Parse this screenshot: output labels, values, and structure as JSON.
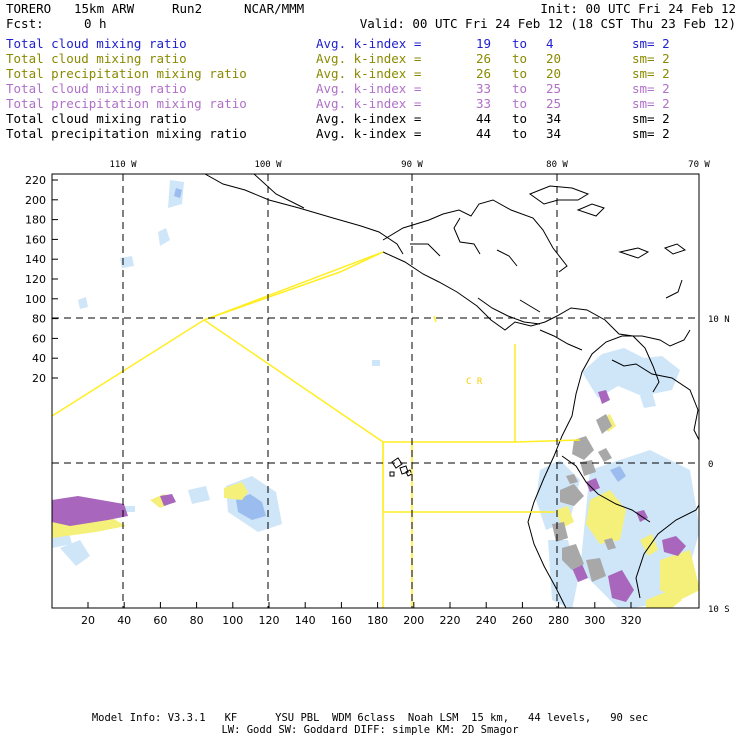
{
  "header": {
    "model": "TORERO",
    "resolution": "15km ARW",
    "run": "Run2",
    "org": "NCAR/MMM",
    "init": "Init: 00 UTC Fri 24 Feb 12",
    "fcst_label": "Fcst:",
    "fcst_value": "0 h",
    "valid": "Valid: 00 UTC Fri 24 Feb 12 (18 CST Thu 23 Feb 12)"
  },
  "legend_rows": [
    {
      "field": "Total cloud mixing ratio",
      "index": "Avg. k-index =",
      "from": "19",
      "to_word": "to",
      "to": "4",
      "sm": "sm= 2",
      "color": "#2020d0"
    },
    {
      "field": "Total cloud mixing ratio",
      "index": "Avg. k-index =",
      "from": "26",
      "to_word": "to",
      "to": "20",
      "sm": "sm= 2",
      "color": "#8a8a00"
    },
    {
      "field": "Total precipitation mixing ratio",
      "index": "Avg. k-index =",
      "from": "26",
      "to_word": "to",
      "to": "20",
      "sm": "sm= 2",
      "color": "#8a8a00"
    },
    {
      "field": "Total cloud mixing ratio",
      "index": "Avg. k-index =",
      "from": "33",
      "to_word": "to",
      "to": "25",
      "sm": "sm= 2",
      "color": "#b070c8"
    },
    {
      "field": "Total precipitation mixing ratio",
      "index": "Avg. k-index =",
      "from": "33",
      "to_word": "to",
      "to": "25",
      "sm": "sm= 2",
      "color": "#b070c8"
    },
    {
      "field": "Total cloud mixing ratio",
      "index": "Avg. k-index =",
      "from": "44",
      "to_word": "to",
      "to": "34",
      "sm": "sm= 2",
      "color": "#000000"
    },
    {
      "field": "Total precipitation mixing ratio",
      "index": "Avg. k-index =",
      "from": "44",
      "to_word": "to",
      "to": "34",
      "sm": "sm= 2",
      "color": "#000000"
    }
  ],
  "map": {
    "lon_labels": [
      "110 W",
      "100 W",
      "90 W",
      "80 W",
      "70 W"
    ],
    "lat_labels": [
      "10 N",
      "0",
      "10 S"
    ],
    "y_ticks": [
      "220",
      "200",
      "180",
      "160",
      "140",
      "120",
      "100",
      "80",
      "60",
      "40",
      "20"
    ],
    "x_ticks": [
      "20",
      "40",
      "60",
      "80",
      "100",
      "120",
      "140",
      "160",
      "180",
      "200",
      "220",
      "240",
      "260",
      "280",
      "300",
      "320"
    ],
    "annotation": "C R",
    "colors": {
      "light_blue": "#cfe6f8",
      "blue": "#90b4ee",
      "yellow": "#f5f07a",
      "purple": "#a867bd",
      "gray": "#a8a8a8",
      "outline_yellow": "#ffee22"
    }
  },
  "footer": {
    "line1": "Model Info: V3.3.1   KF      YSU PBL  WDM 6class  Noah LSM  15 km,   44 levels,   90 sec",
    "line2": "LW: Godd SW: Goddard DIFF: simple KM: 2D Smagor"
  }
}
